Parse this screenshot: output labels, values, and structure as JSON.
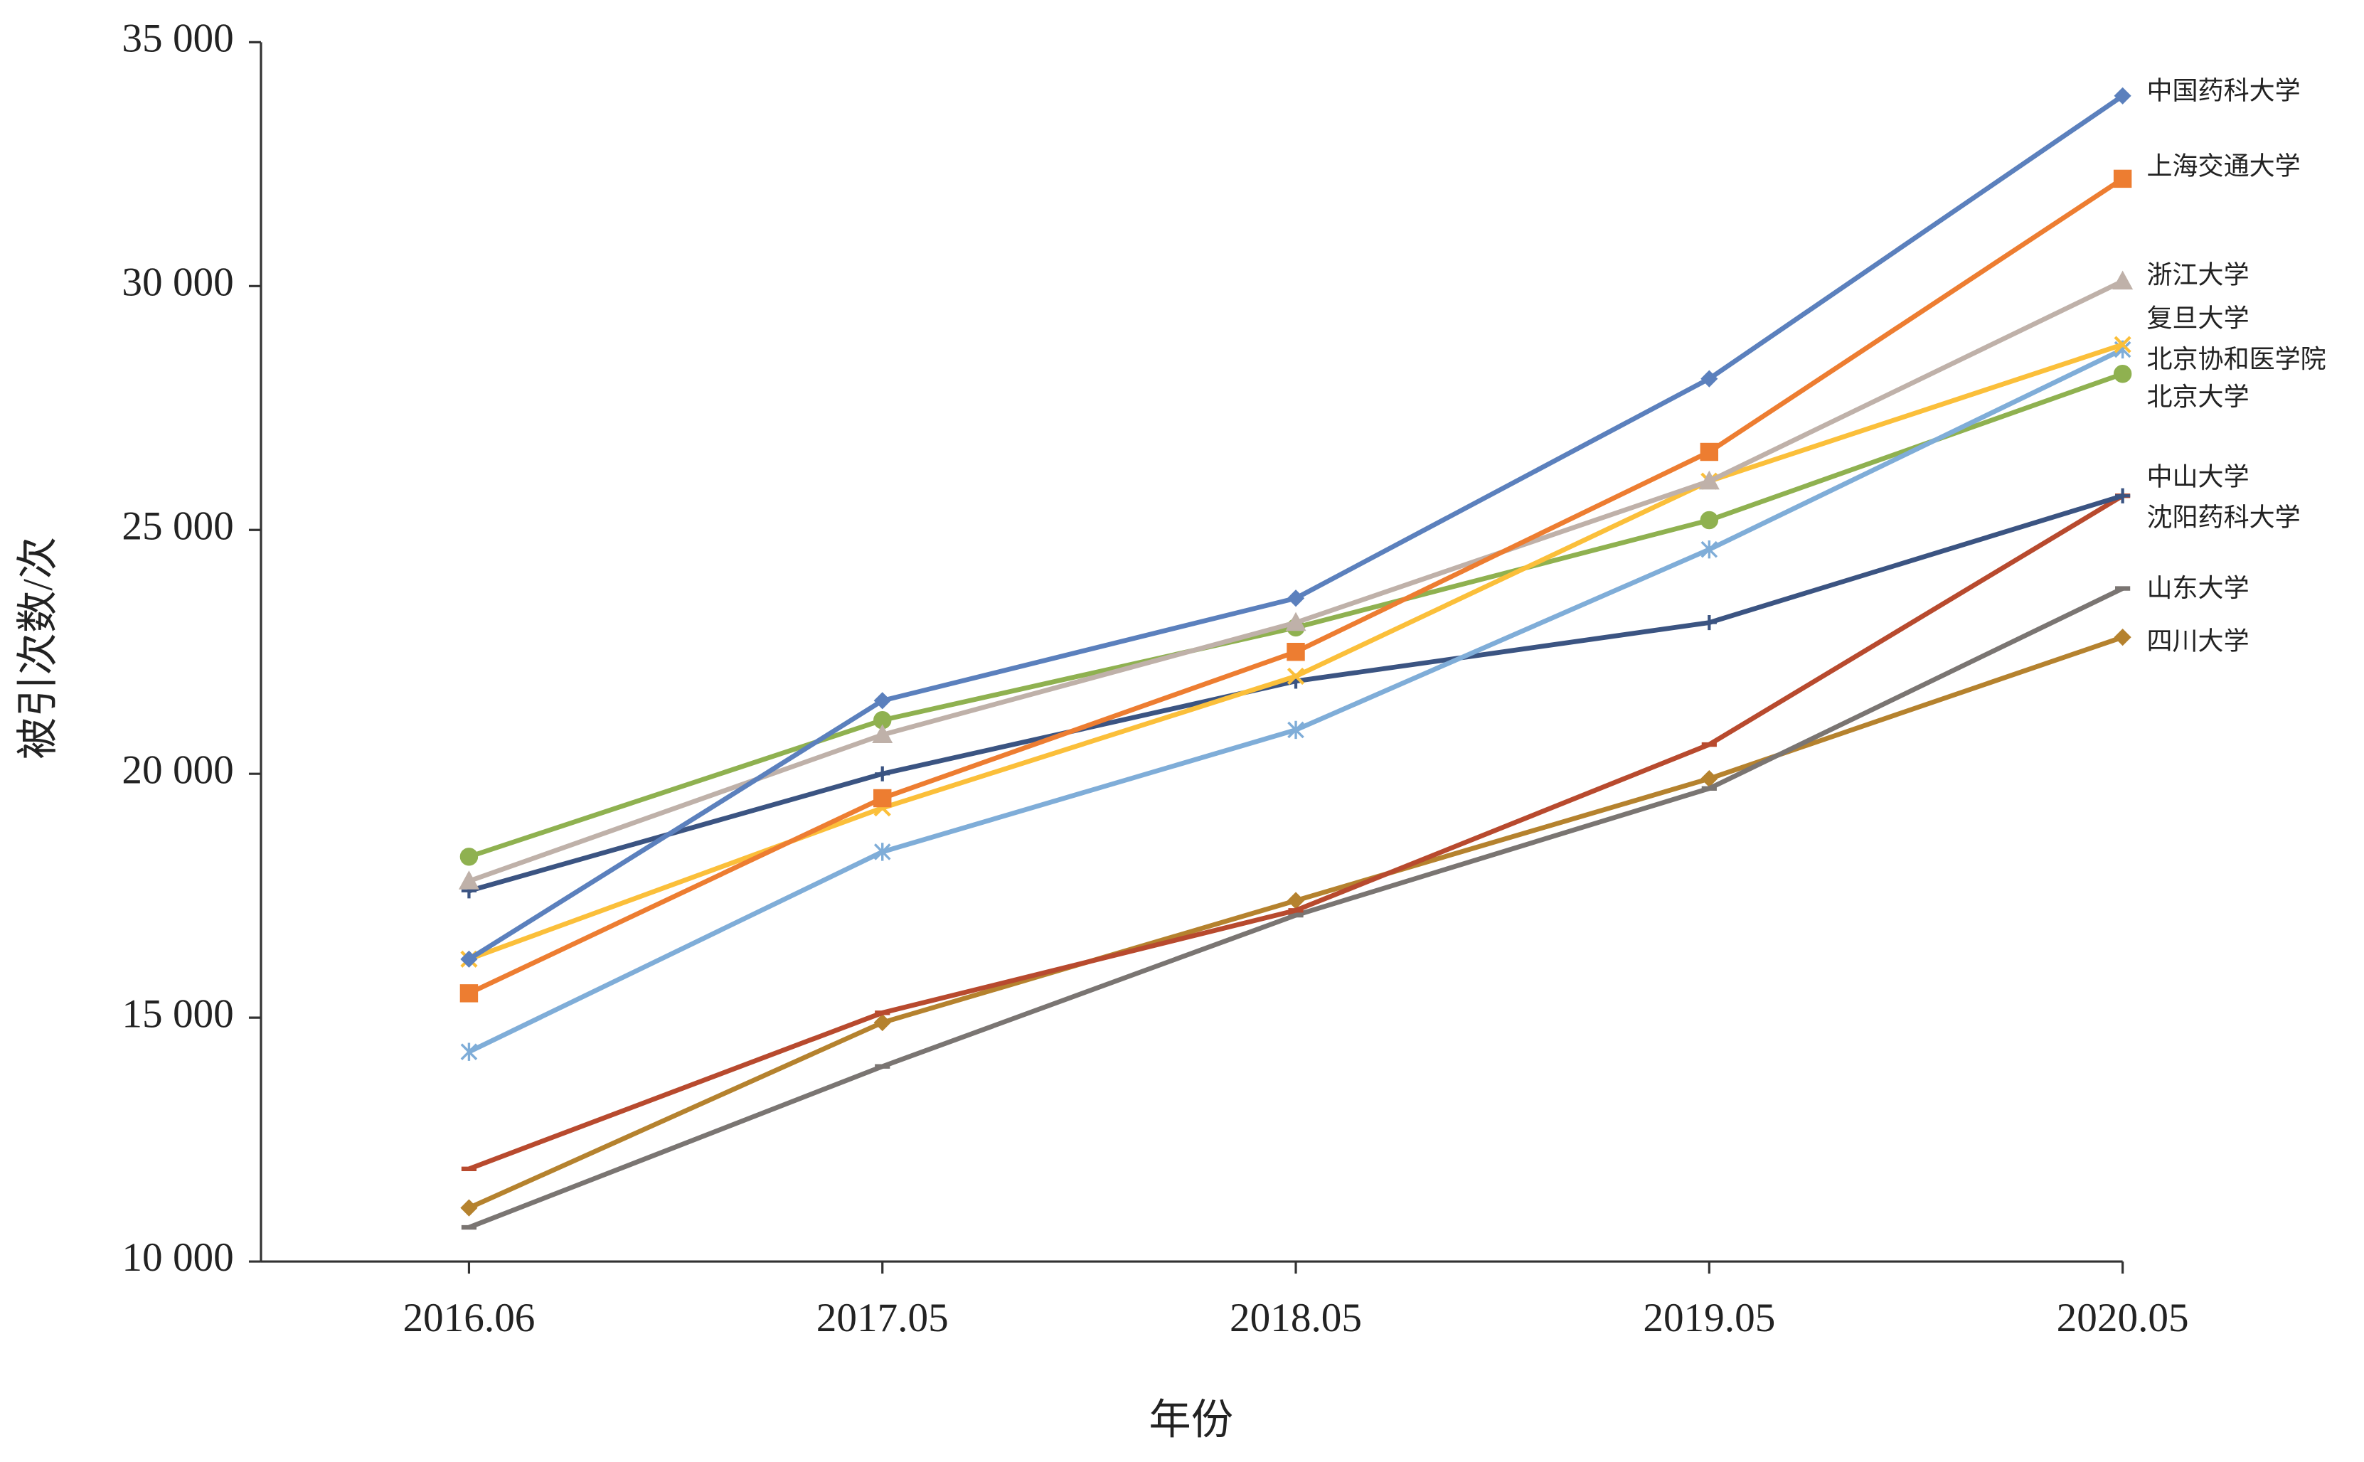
{
  "chart_data": {
    "type": "line",
    "xlabel": "年份",
    "ylabel": "被引次数/次",
    "categories": [
      "2016.06",
      "2017.05",
      "2018.05",
      "2019.05",
      "2020.05"
    ],
    "ylim": [
      10000,
      35000
    ],
    "yticks": [
      {
        "value": 10000,
        "label": "10 000"
      },
      {
        "value": 15000,
        "label": "15 000"
      },
      {
        "value": 20000,
        "label": "20 000"
      },
      {
        "value": 25000,
        "label": "25 000"
      },
      {
        "value": 30000,
        "label": "30 000"
      },
      {
        "value": 35000,
        "label": "35 000"
      }
    ],
    "grid": false,
    "series": [
      {
        "name": "中国药科大学",
        "color": "#5b80bd",
        "marker": "diamond",
        "values": [
          16200,
          21500,
          23600,
          28100,
          33900
        ]
      },
      {
        "name": "上海交通大学",
        "color": "#ed7d31",
        "marker": "square",
        "values": [
          15500,
          19500,
          22500,
          26600,
          32200
        ]
      },
      {
        "name": "浙江大学",
        "color": "#bfb1a9",
        "marker": "triangle",
        "values": [
          17800,
          20800,
          23100,
          26000,
          30100
        ]
      },
      {
        "name": "复旦大学",
        "color": "#fbbf3a",
        "marker": "x",
        "values": [
          16200,
          19300,
          22000,
          26000,
          28800
        ]
      },
      {
        "name": "北京协和医学院",
        "color": "#7fadd8",
        "marker": "star",
        "values": [
          14300,
          18400,
          20900,
          24600,
          28700
        ]
      },
      {
        "name": "北京大学",
        "color": "#8fb150",
        "marker": "circle",
        "values": [
          18300,
          21100,
          23000,
          25200,
          28200
        ]
      },
      {
        "name": "中山大学",
        "color": "#3b5482",
        "marker": "plus",
        "values": [
          17600,
          20000,
          21900,
          23100,
          25700
        ]
      },
      {
        "name": "沈阳药科大学",
        "color": "#b84a2e",
        "marker": "dash",
        "values": [
          11900,
          15100,
          17200,
          20600,
          25700
        ]
      },
      {
        "name": "山东大学",
        "color": "#7a7572",
        "marker": "dash",
        "values": [
          10700,
          14000,
          17100,
          19700,
          23800
        ]
      },
      {
        "name": "四川大学",
        "color": "#b5822e",
        "marker": "diamond",
        "values": [
          11100,
          14900,
          17400,
          19900,
          22800
        ]
      }
    ]
  }
}
